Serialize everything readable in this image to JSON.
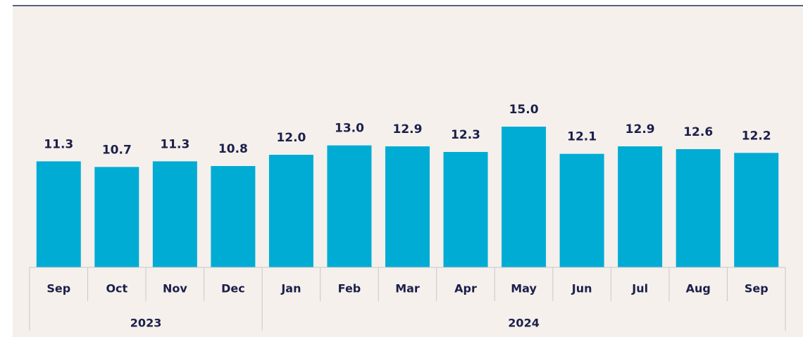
{
  "chart_data": {
    "type": "bar",
    "color": "#00acd4",
    "groups": [
      {
        "label": "2023",
        "categories": [
          "Sep",
          "Oct",
          "Nov",
          "Dec"
        ]
      },
      {
        "label": "2024",
        "categories": [
          "Jan",
          "Feb",
          "Mar",
          "Apr",
          "May",
          "Jun",
          "Jul",
          "Aug",
          "Sep"
        ]
      }
    ],
    "values": [
      11.3,
      10.7,
      11.3,
      10.8,
      12.0,
      13.0,
      12.9,
      12.3,
      15.0,
      12.1,
      12.9,
      12.6,
      12.2
    ],
    "value_labels": [
      "11.3",
      "10.7",
      "11.3",
      "10.8",
      "12.0",
      "13.0",
      "12.9",
      "12.3",
      "15.0",
      "12.1",
      "12.9",
      "12.6",
      "12.2"
    ]
  }
}
